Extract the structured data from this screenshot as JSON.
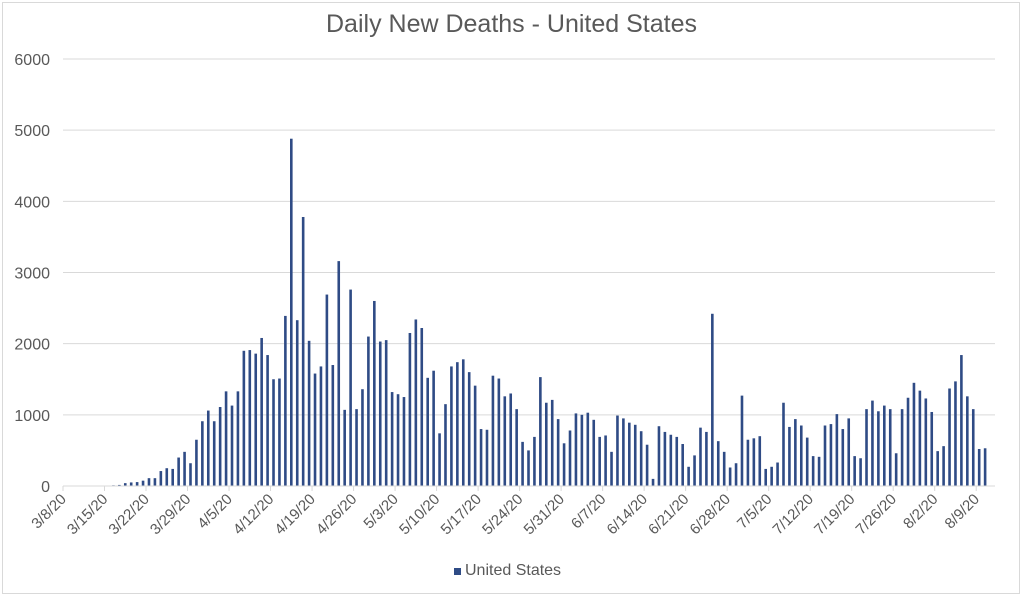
{
  "chart_data": {
    "type": "bar",
    "title": "Daily New Deaths - United States",
    "xlabel": "",
    "ylabel": "",
    "ylim": [
      0,
      6000
    ],
    "yticks": [
      0,
      1000,
      2000,
      3000,
      4000,
      5000,
      6000
    ],
    "grid": true,
    "legend_position": "bottom",
    "x_start": "3/8/20",
    "xtick_labels": [
      "3/8/20",
      "3/15/20",
      "3/22/20",
      "3/29/20",
      "4/5/20",
      "4/12/20",
      "4/19/20",
      "4/26/20",
      "5/3/20",
      "5/10/20",
      "5/17/20",
      "5/24/20",
      "5/31/20",
      "6/7/20",
      "6/14/20",
      "6/21/20",
      "6/28/20",
      "7/5/20",
      "7/12/20",
      "7/19/20",
      "7/26/20",
      "8/2/20",
      "8/9/20"
    ],
    "series": [
      {
        "name": "United States",
        "color": "#2f4b85",
        "values": [
          0,
          0,
          0,
          0,
          0,
          0,
          0,
          5,
          10,
          15,
          40,
          50,
          55,
          75,
          110,
          110,
          210,
          250,
          240,
          400,
          480,
          320,
          650,
          910,
          1060,
          910,
          1110,
          1330,
          1130,
          1330,
          1900,
          1910,
          1860,
          2080,
          1840,
          1500,
          1510,
          2390,
          4880,
          2330,
          3780,
          2040,
          1580,
          1680,
          2690,
          1700,
          3160,
          1070,
          2760,
          1080,
          1360,
          2100,
          2600,
          2030,
          2050,
          1320,
          1290,
          1250,
          2150,
          2340,
          2220,
          1520,
          1620,
          740,
          1150,
          1680,
          1740,
          1780,
          1600,
          1410,
          800,
          790,
          1550,
          1510,
          1260,
          1300,
          1080,
          620,
          500,
          690,
          1530,
          1170,
          1210,
          940,
          600,
          780,
          1020,
          1000,
          1030,
          930,
          690,
          710,
          480,
          990,
          950,
          890,
          860,
          770,
          580,
          100,
          840,
          760,
          720,
          690,
          590,
          270,
          430,
          820,
          760,
          2420,
          630,
          480,
          260,
          320,
          1270,
          650,
          670,
          700,
          240,
          270,
          330,
          1170,
          830,
          940,
          850,
          680,
          420,
          410,
          850,
          870,
          1010,
          800,
          950,
          420,
          390,
          1080,
          1200,
          1050,
          1130,
          1080,
          460,
          1080,
          1240,
          1450,
          1340,
          1230,
          1040,
          490,
          560,
          1370,
          1470,
          1840,
          1260,
          1080,
          520,
          530
        ]
      }
    ]
  },
  "legend": {
    "label": "United States"
  }
}
